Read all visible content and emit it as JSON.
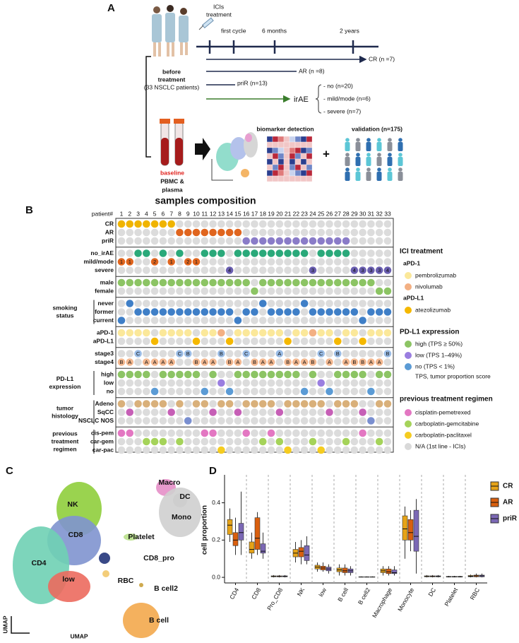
{
  "panel_labels": [
    "A",
    "B",
    "C",
    "D"
  ],
  "panel_a": {
    "treatment": [
      "ICIs",
      "treatment"
    ],
    "timepoints": [
      "first cycle",
      "6 months",
      "2 years"
    ],
    "responses": [
      "CR (n =7)",
      "AR (n =8)",
      "priR (n=13)"
    ],
    "irae": "irAE",
    "irae_items": [
      "- no (n=20)",
      "- mild/mode (n=6)",
      "- severe (n=7)"
    ],
    "cohort": [
      "before",
      "treatment",
      "(33 NSCLC patients)"
    ],
    "sample": [
      "baseline",
      "PBMC &",
      "plasma"
    ],
    "biomarker": "biomarker detection",
    "plus": "+",
    "validation": "validation (n=175)"
  },
  "composition": {
    "title": "samples composition",
    "patient_header": "patient#",
    "patients": [
      1,
      2,
      3,
      4,
      5,
      6,
      7,
      8,
      9,
      10,
      11,
      12,
      13,
      14,
      15,
      16,
      17,
      18,
      19,
      20,
      21,
      22,
      23,
      24,
      25,
      26,
      27,
      28,
      29,
      30,
      31,
      32,
      33
    ],
    "groups": [
      {
        "rows": [
          "CR",
          "AR",
          "priR"
        ],
        "colors": [
          "#f0b400",
          "#e0651e",
          "#8a7cc8"
        ],
        "values": [
          "CR",
          "CR",
          "CR",
          "CR",
          "CR",
          "CR",
          "CR",
          "AR",
          "AR",
          "AR",
          "AR",
          "AR",
          "AR",
          "AR",
          "AR",
          "priR",
          "priR",
          "priR",
          "priR",
          "priR",
          "priR",
          "priR",
          "priR",
          "priR",
          "priR",
          "priR",
          "priR",
          "priR",
          null,
          null,
          null,
          null,
          null
        ]
      },
      {
        "rows": [
          "no_irAE",
          "mild/mode",
          "severe"
        ],
        "colors": [
          "#2aa97a",
          "#e0651e",
          "#6a5fb0"
        ],
        "values": [
          "mild/mode",
          "mild/mode",
          "no_irAE",
          "no_irAE",
          "mild/mode",
          "no_irAE",
          "mild/mode",
          "no_irAE",
          "mild/mode",
          "mild/mode",
          "no_irAE",
          "no_irAE",
          "no_irAE",
          "severe",
          "no_irAE",
          "no_irAE",
          "no_irAE",
          "no_irAE",
          "no_irAE",
          "no_irAE",
          "no_irAE",
          "no_irAE",
          "no_irAE",
          "severe",
          "no_irAE",
          "no_irAE",
          "no_irAE",
          "no_irAE",
          "severe",
          "severe",
          "severe",
          "severe",
          "severe"
        ],
        "dot_labels": [
          "1",
          "1",
          null,
          null,
          "2",
          null,
          "1",
          null,
          "2",
          "1",
          null,
          null,
          null,
          "4",
          null,
          null,
          null,
          null,
          null,
          null,
          null,
          null,
          null,
          "3",
          null,
          null,
          null,
          null,
          "4",
          "3",
          "3",
          "3",
          "4"
        ]
      },
      {
        "rows": [
          "male",
          "female"
        ],
        "colors": [
          "#8cc464",
          "#8cc464"
        ],
        "values": [
          "male",
          "male",
          "male",
          "male",
          "male",
          "male",
          "male",
          "male",
          "male",
          "male",
          "male",
          "male",
          "male",
          "male",
          "male",
          "male",
          "female",
          "male",
          "male",
          "male",
          "male",
          "male",
          "male",
          "male",
          "male",
          "male",
          "male",
          "male",
          "male",
          "male",
          "male",
          "female",
          "female"
        ]
      },
      {
        "label": [
          "smoking",
          "status"
        ],
        "rows": [
          "never",
          "former",
          "current"
        ],
        "colors": [
          "#3f7fc7",
          "#3f7fc7",
          "#3f7fc7"
        ],
        "values": [
          "current",
          "never",
          "former",
          "former",
          "former",
          "former",
          "former",
          "former",
          "former",
          "former",
          "former",
          "former",
          "former",
          "former",
          "current",
          "former",
          "former",
          "never",
          "former",
          "former",
          "former",
          "former",
          "never",
          "former",
          "former",
          "former",
          "former",
          "former",
          "former",
          "current",
          "former",
          "former",
          "former"
        ]
      },
      {
        "rows": [
          "aPD-1",
          "aPD-L1"
        ],
        "values": [
          "pembrolizumab",
          "pembrolizumab",
          "pembrolizumab",
          "pembrolizumab",
          "atezolizumab",
          "pembrolizumab",
          "pembrolizumab",
          "pembrolizumab",
          "pembrolizumab",
          "atezolizumab",
          "pembrolizumab",
          "pembrolizumab",
          "nivolumab",
          "atezolizumab",
          "pembrolizumab",
          "pembrolizumab",
          "pembrolizumab",
          "pembrolizumab",
          "pembrolizumab",
          "pembrolizumab",
          "atezolizumab",
          "pembrolizumab",
          "pembrolizumab",
          "nivolumab",
          "pembrolizumab",
          "pembrolizumab",
          "atezolizumab",
          "pembrolizumab",
          "pembrolizumab",
          "atezolizumab",
          "pembrolizumab",
          "pembrolizumab",
          "pembrolizumab"
        ]
      },
      {
        "rows": [
          "stage3",
          "stage4"
        ],
        "colors": [
          "#9bbde6",
          "#f3b890"
        ],
        "values": [
          "stage4",
          "stage4",
          "stage3",
          "stage4",
          "stage4",
          "stage4",
          "stage4",
          "stage3",
          "stage3",
          "stage4",
          "stage4",
          "stage4",
          "stage3",
          "stage4",
          "stage4",
          "stage3",
          "stage4",
          "stage4",
          "stage4",
          "stage3",
          "stage4",
          "stage4",
          "stage4",
          "stage4",
          "stage3",
          "stage4",
          "stage3",
          "stage4",
          "stage4",
          "stage4",
          "stage4",
          "stage4",
          "stage3"
        ],
        "dot_labels": [
          "B",
          "A",
          "C",
          "A",
          "A",
          "A",
          "A",
          "C",
          "B",
          "B",
          "A",
          "A",
          "B",
          "B",
          "A",
          "C",
          "B",
          "A",
          "A",
          "A",
          "B",
          "A",
          "A",
          "B",
          "C",
          "A",
          "B",
          "A",
          "B",
          "B",
          "A",
          "A",
          "B"
        ]
      },
      {
        "label": [
          "PD-L1",
          "expression"
        ],
        "rows": [
          "high",
          "low",
          "no"
        ],
        "colors": [
          "#8cc464",
          "#9a7ee0",
          "#5b9bd5"
        ],
        "values": [
          "high",
          "high",
          "high",
          "high",
          "no",
          "high",
          "high",
          "high",
          "high",
          "high",
          "no",
          "high",
          "low",
          "no",
          "high",
          "high",
          "high",
          "high",
          "high",
          "high",
          "high",
          "high",
          "no",
          "high",
          "low",
          "no",
          "high",
          "high",
          "high",
          "high",
          "no",
          "high",
          "high"
        ]
      },
      {
        "label": [
          "tumor",
          "histology"
        ],
        "rows": [
          "Adeno",
          "SqCC",
          "NSCLC NOS"
        ],
        "colors": [
          "#d9b07a",
          "#c65fb6",
          "#7a8fd0"
        ],
        "values": [
          "Adeno",
          "SqCC",
          "Adeno",
          "Adeno",
          "Adeno",
          "Adeno",
          "SqCC",
          "Adeno",
          "NSCLC NOS",
          "Adeno",
          "Adeno",
          "SqCC",
          "Adeno",
          "Adeno",
          "SqCC",
          "Adeno",
          "Adeno",
          "Adeno",
          "Adeno",
          "SqCC",
          "Adeno",
          "Adeno",
          "Adeno",
          "Adeno",
          "Adeno",
          "SqCC",
          "Adeno",
          "Adeno",
          "Adeno",
          "SqCC",
          "NSCLC NOS",
          "Adeno",
          "Adeno"
        ]
      },
      {
        "label": [
          "previous",
          "treatment",
          "regimen"
        ],
        "rows": [
          "cis-pem",
          "car-gem",
          "car-pac"
        ],
        "colors": [
          "#e377c2",
          "#a5d35a",
          "#f5cc20"
        ],
        "values": [
          "cis-pem",
          "cis-pem",
          null,
          "car-gem",
          "car-gem",
          "car-gem",
          null,
          "car-gem",
          null,
          null,
          "cis-pem",
          "cis-pem",
          "car-pac",
          null,
          null,
          "cis-pem",
          null,
          "car-gem",
          "cis-pem",
          "car-gem",
          "car-pac",
          null,
          null,
          "car-gem",
          "car-pac",
          null,
          null,
          "car-gem",
          null,
          "cis-pem",
          null,
          "car-gem",
          null
        ]
      }
    ],
    "legend": {
      "ici_title": "ICI treatment",
      "ici_classes": [
        {
          "label": "aPD-1",
          "items": [
            {
              "label": "pembrolizumab",
              "color": "#fbe89a"
            },
            {
              "label": "nivolumab",
              "color": "#f3b083"
            }
          ]
        },
        {
          "label": "aPD-L1",
          "items": [
            {
              "label": "atezolizumab",
              "color": "#f5b800"
            }
          ]
        }
      ],
      "pdl1_title": "PD-L1 expression",
      "pdl1_items": [
        {
          "label": "high (TPS ≥ 50%)",
          "color": "#8cc464"
        },
        {
          "label": "low (TPS 1–49%)",
          "color": "#9a7ee0"
        },
        {
          "label": "no (TPS < 1%)",
          "color": "#5b9bd5"
        }
      ],
      "pdl1_note": "TPS, tumor proportion score",
      "prior_title": "previous treatment regimen",
      "prior_items": [
        {
          "label": "cisplatin-pemetrexed",
          "color": "#e377c2"
        },
        {
          "label": "carboplatin-gemcitabine",
          "color": "#a5d35a"
        },
        {
          "label": "carboplatin-paclitaxel",
          "color": "#f5cc20"
        },
        {
          "label": "N/A (1st line - ICIs)",
          "color": "#d9d9d9"
        }
      ]
    }
  },
  "umap": {
    "axis_label": "UMAP",
    "clusters": [
      {
        "name": "Macro",
        "color": "#e58fc8"
      },
      {
        "name": "DC",
        "color": "#b7b7b7"
      },
      {
        "name": "Mono",
        "color": "#cfcfcf"
      },
      {
        "name": "NK",
        "color": "#8fce3c"
      },
      {
        "name": "CD8",
        "color": "#7f93cf"
      },
      {
        "name": "Platelet",
        "color": "#b8e08a"
      },
      {
        "name": "CD4",
        "color": "#6fd0b4"
      },
      {
        "name": "CD8_pro",
        "color": "#23357a"
      },
      {
        "name": "low",
        "color": "#ec6a5e"
      },
      {
        "name": "RBC",
        "color": "#f2c86a"
      },
      {
        "name": "B cell2",
        "color": "#c9a03b"
      },
      {
        "name": "B cell",
        "color": "#f3a94c"
      }
    ]
  },
  "chart_data": {
    "type": "box",
    "ylabel": "cell proportion",
    "categories": [
      "CD4",
      "CD8",
      "Pro_CD8",
      "NK",
      "low",
      "B cell",
      "B cell2",
      "Macrophage",
      "Monocyte",
      "DC",
      "Platelet",
      "RBC"
    ],
    "ylim": [
      -0.03,
      0.55
    ],
    "yticks": [
      {
        "value": 0,
        "label": "0.0"
      },
      {
        "value": 0.2,
        "label": "0.2"
      },
      {
        "value": 0.4,
        "label": "0.4"
      }
    ],
    "series": [
      {
        "name": "CR",
        "color": "#e6a317",
        "values": [
          [
            0.19,
            0.23,
            0.28,
            0.31,
            0.37
          ],
          [
            0.1,
            0.13,
            0.15,
            0.19,
            0.24
          ],
          [
            0,
            0.003,
            0.005,
            0.008,
            0.012
          ],
          [
            0.08,
            0.11,
            0.13,
            0.15,
            0.19
          ],
          [
            0.03,
            0.045,
            0.055,
            0.065,
            0.08
          ],
          [
            0.01,
            0.03,
            0.04,
            0.05,
            0.07
          ],
          [
            0,
            0.001,
            0.002,
            0.003,
            0.005
          ],
          [
            0.01,
            0.025,
            0.035,
            0.045,
            0.06
          ],
          [
            0.1,
            0.2,
            0.26,
            0.33,
            0.38
          ],
          [
            0,
            0.003,
            0.005,
            0.008,
            0.012
          ],
          [
            0,
            0.002,
            0.003,
            0.005,
            0.008
          ],
          [
            0,
            0.003,
            0.006,
            0.01,
            0.015
          ]
        ]
      },
      {
        "name": "AR",
        "color": "#d95f0e",
        "values": [
          [
            0.12,
            0.17,
            0.2,
            0.24,
            0.32
          ],
          [
            0.12,
            0.15,
            0.21,
            0.32,
            0.35
          ],
          [
            0,
            0.003,
            0.005,
            0.008,
            0.012
          ],
          [
            0.07,
            0.11,
            0.14,
            0.16,
            0.2
          ],
          [
            0.03,
            0.04,
            0.05,
            0.06,
            0.08
          ],
          [
            0.01,
            0.025,
            0.035,
            0.05,
            0.07
          ],
          [
            0,
            0.001,
            0.002,
            0.003,
            0.005
          ],
          [
            0.01,
            0.02,
            0.03,
            0.045,
            0.06
          ],
          [
            0.14,
            0.2,
            0.24,
            0.31,
            0.36
          ],
          [
            0,
            0.003,
            0.005,
            0.008,
            0.012
          ],
          [
            0,
            0.002,
            0.003,
            0.005,
            0.008
          ],
          [
            0,
            0.003,
            0.008,
            0.012,
            0.02
          ]
        ]
      },
      {
        "name": "priR",
        "color": "#7b68b5",
        "values": [
          [
            0.12,
            0.2,
            0.24,
            0.29,
            0.46
          ],
          [
            0.1,
            0.13,
            0.14,
            0.18,
            0.24
          ],
          [
            0,
            0.003,
            0.005,
            0.008,
            0.012
          ],
          [
            0.07,
            0.09,
            0.12,
            0.17,
            0.22
          ],
          [
            0.02,
            0.035,
            0.045,
            0.055,
            0.07
          ],
          [
            0.01,
            0.025,
            0.035,
            0.045,
            0.06
          ],
          [
            0,
            0.001,
            0.002,
            0.003,
            0.005
          ],
          [
            0.01,
            0.02,
            0.025,
            0.04,
            0.06
          ],
          [
            0.02,
            0.14,
            0.22,
            0.36,
            0.42
          ],
          [
            0,
            0.003,
            0.005,
            0.008,
            0.012
          ],
          [
            0,
            0.002,
            0.003,
            0.005,
            0.008
          ],
          [
            0,
            0.003,
            0.008,
            0.012,
            0.02
          ]
        ]
      }
    ]
  }
}
